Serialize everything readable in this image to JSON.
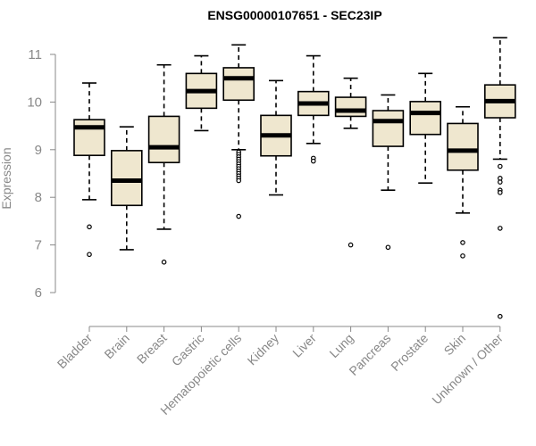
{
  "chart_data": {
    "type": "boxplot",
    "title": "ENSG00000107651 - SEC23IP",
    "xlabel": "",
    "ylabel": "Expression",
    "ylim": [
      5.5,
      11.3
    ],
    "yticks": [
      6,
      7,
      8,
      9,
      10,
      11
    ],
    "grid": false,
    "categories": [
      "Bladder",
      "Brain",
      "Breast",
      "Gastric",
      "Hematopoietic cells",
      "Kidney",
      "Liver",
      "Lung",
      "Pancreas",
      "Prostate",
      "Skin",
      "Unknown / Other"
    ],
    "box_color": "#efe7cf",
    "boxes": [
      {
        "min": 7.95,
        "q1": 8.88,
        "median": 9.47,
        "q3": 9.63,
        "max": 10.4,
        "outliers": [
          7.38,
          6.8
        ]
      },
      {
        "min": 6.9,
        "q1": 7.83,
        "median": 8.35,
        "q3": 8.98,
        "max": 9.48,
        "outliers": []
      },
      {
        "min": 7.33,
        "q1": 8.73,
        "median": 9.05,
        "q3": 9.7,
        "max": 10.78,
        "outliers": [
          6.64
        ]
      },
      {
        "min": 9.4,
        "q1": 9.87,
        "median": 10.23,
        "q3": 10.6,
        "max": 10.97,
        "outliers": []
      },
      {
        "min": 9.0,
        "q1": 10.04,
        "median": 10.5,
        "q3": 10.72,
        "max": 11.2,
        "outliers": [
          8.95,
          8.9,
          8.85,
          8.8,
          8.75,
          8.7,
          8.65,
          8.6,
          8.55,
          8.5,
          8.45,
          8.4,
          8.35,
          7.6
        ]
      },
      {
        "min": 8.05,
        "q1": 8.87,
        "median": 9.3,
        "q3": 9.72,
        "max": 10.45,
        "outliers": []
      },
      {
        "min": 9.13,
        "q1": 9.72,
        "median": 9.97,
        "q3": 10.22,
        "max": 10.97,
        "outliers": [
          8.82,
          8.76
        ]
      },
      {
        "min": 9.45,
        "q1": 9.7,
        "median": 9.82,
        "q3": 10.1,
        "max": 10.5,
        "outliers": [
          7.0
        ]
      },
      {
        "min": 8.15,
        "q1": 9.07,
        "median": 9.6,
        "q3": 9.82,
        "max": 10.15,
        "outliers": [
          6.95
        ]
      },
      {
        "min": 8.3,
        "q1": 9.32,
        "median": 9.77,
        "q3": 10.01,
        "max": 10.6,
        "outliers": []
      },
      {
        "min": 7.67,
        "q1": 8.57,
        "median": 8.98,
        "q3": 9.55,
        "max": 9.9,
        "outliers": [
          7.05,
          6.77
        ]
      },
      {
        "min": 8.8,
        "q1": 9.67,
        "median": 10.02,
        "q3": 10.36,
        "max": 11.35,
        "outliers": [
          8.65,
          8.4,
          8.32,
          8.15,
          8.1,
          7.35,
          5.5
        ]
      }
    ]
  }
}
